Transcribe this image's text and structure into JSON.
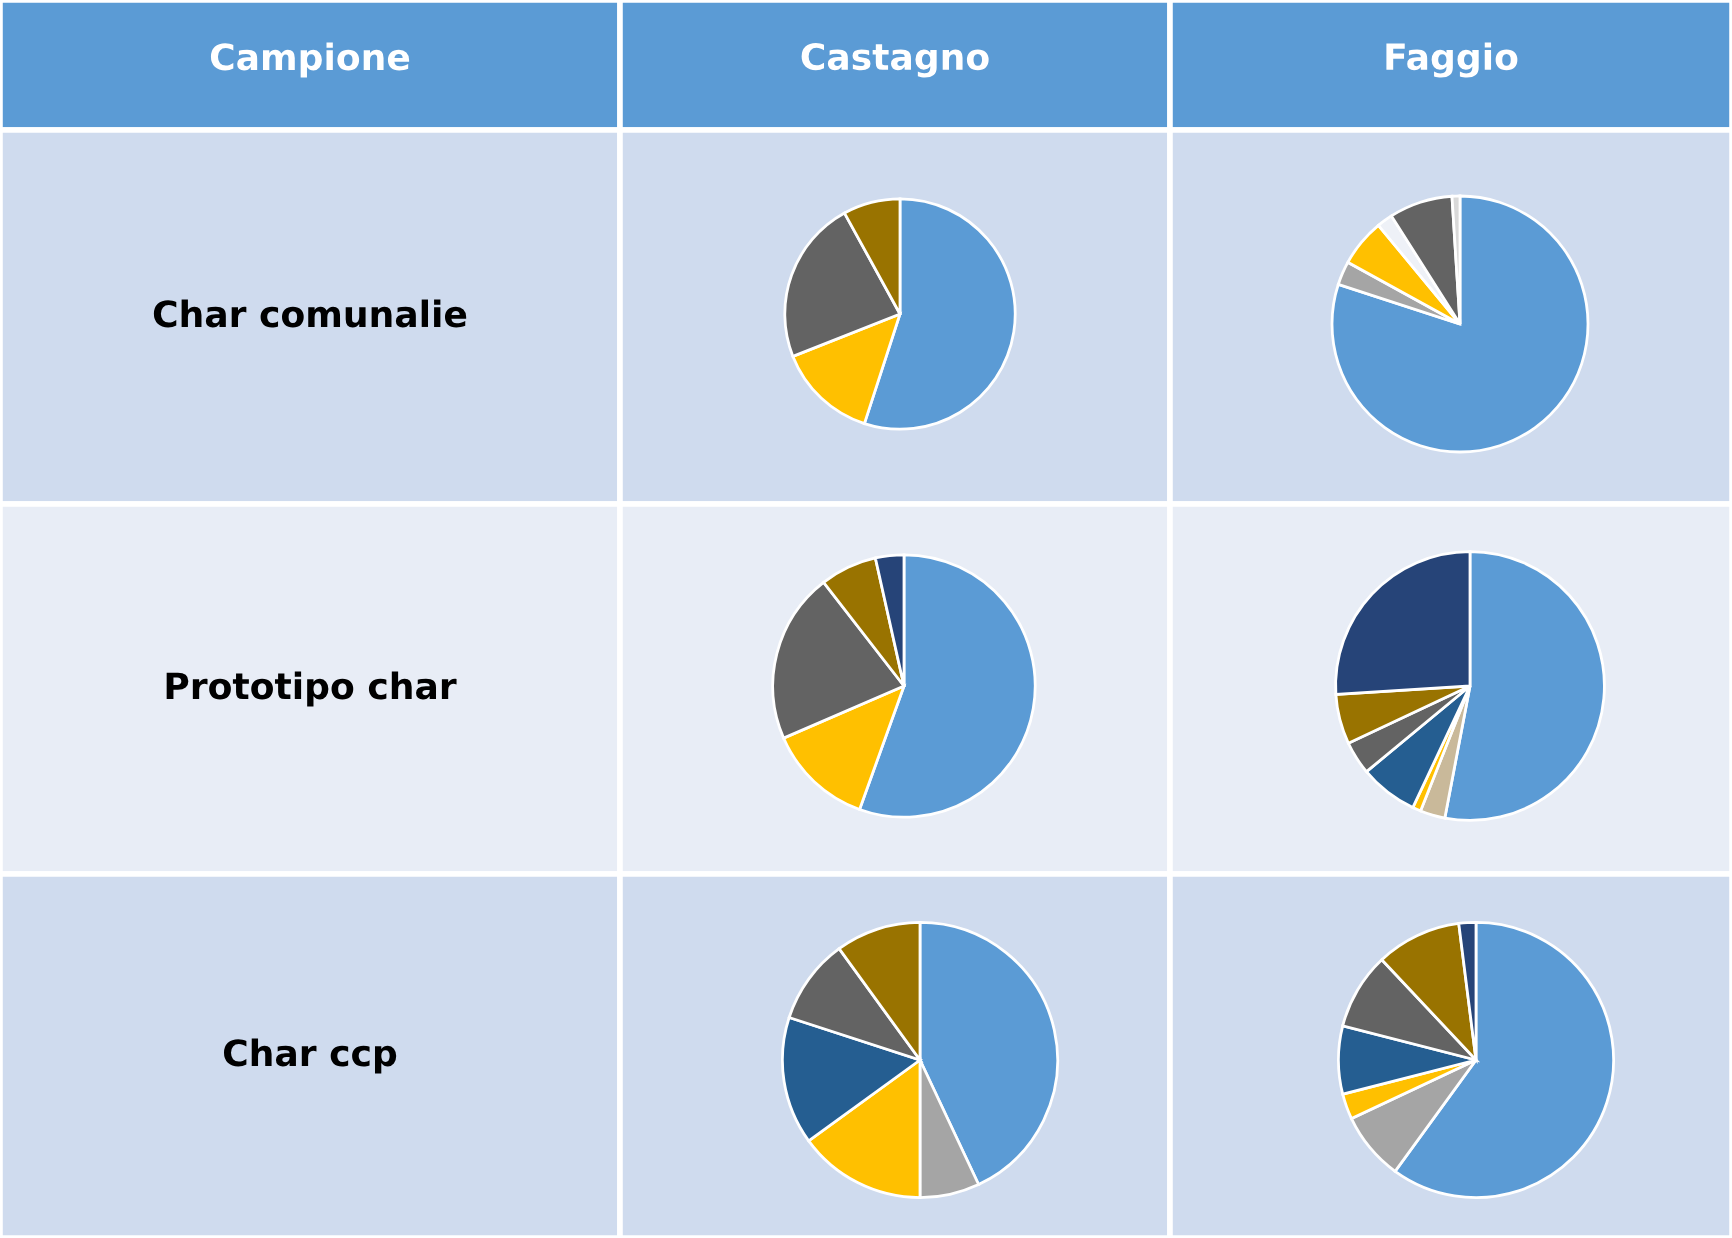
{
  "chart_data": [
    {
      "type": "other",
      "annotations": [
        "Campione",
        "Castagno",
        "Faggio",
        "Char comunalie",
        "Prototipo char",
        "Char ccp"
      ]
    },
    {
      "type": "pie",
      "categories": [
        null,
        null,
        null,
        null
      ],
      "values": [
        55,
        14,
        23,
        8
      ],
      "colors": [
        "#5b9bd5",
        "#ffc000",
        "#636363",
        "#997300"
      ]
    },
    {
      "type": "pie",
      "categories": [
        null,
        null,
        null,
        null,
        null,
        null
      ],
      "values": [
        80,
        3,
        6,
        2,
        8,
        1
      ],
      "colors": [
        "#5b9bd5",
        "#a5a5a5",
        "#ffc000",
        "#eef1f7",
        "#636363",
        "#d9d9d9"
      ]
    },
    {
      "type": "pie",
      "categories": [
        null,
        null,
        null,
        null,
        null
      ],
      "values": [
        55.5,
        13,
        21,
        7,
        3.5
      ],
      "colors": [
        "#5b9bd5",
        "#ffc000",
        "#636363",
        "#997300",
        "#264478"
      ]
    },
    {
      "type": "pie",
      "categories": [
        null,
        null,
        null,
        null,
        null,
        null,
        null
      ],
      "values": [
        53,
        3,
        1,
        7,
        4,
        6,
        26
      ],
      "colors": [
        "#5b9bd5",
        "#c9b99a",
        "#ffc000",
        "#255e91",
        "#636363",
        "#997300",
        "#264478"
      ]
    },
    {
      "type": "pie",
      "categories": [
        null,
        null,
        null,
        null,
        null,
        null
      ],
      "values": [
        43,
        7,
        15,
        15,
        10,
        10
      ],
      "colors": [
        "#5b9bd5",
        "#a5a5a5",
        "#ffc000",
        "#255e91",
        "#636363",
        "#997300"
      ]
    },
    {
      "type": "pie",
      "categories": [
        null,
        null,
        null,
        null,
        null,
        null,
        null
      ],
      "values": [
        60,
        8,
        3,
        8,
        9,
        10,
        2
      ],
      "colors": [
        "#5b9bd5",
        "#a5a5a5",
        "#ffc000",
        "#255e91",
        "#636363",
        "#997300",
        "#264478"
      ]
    }
  ]
}
